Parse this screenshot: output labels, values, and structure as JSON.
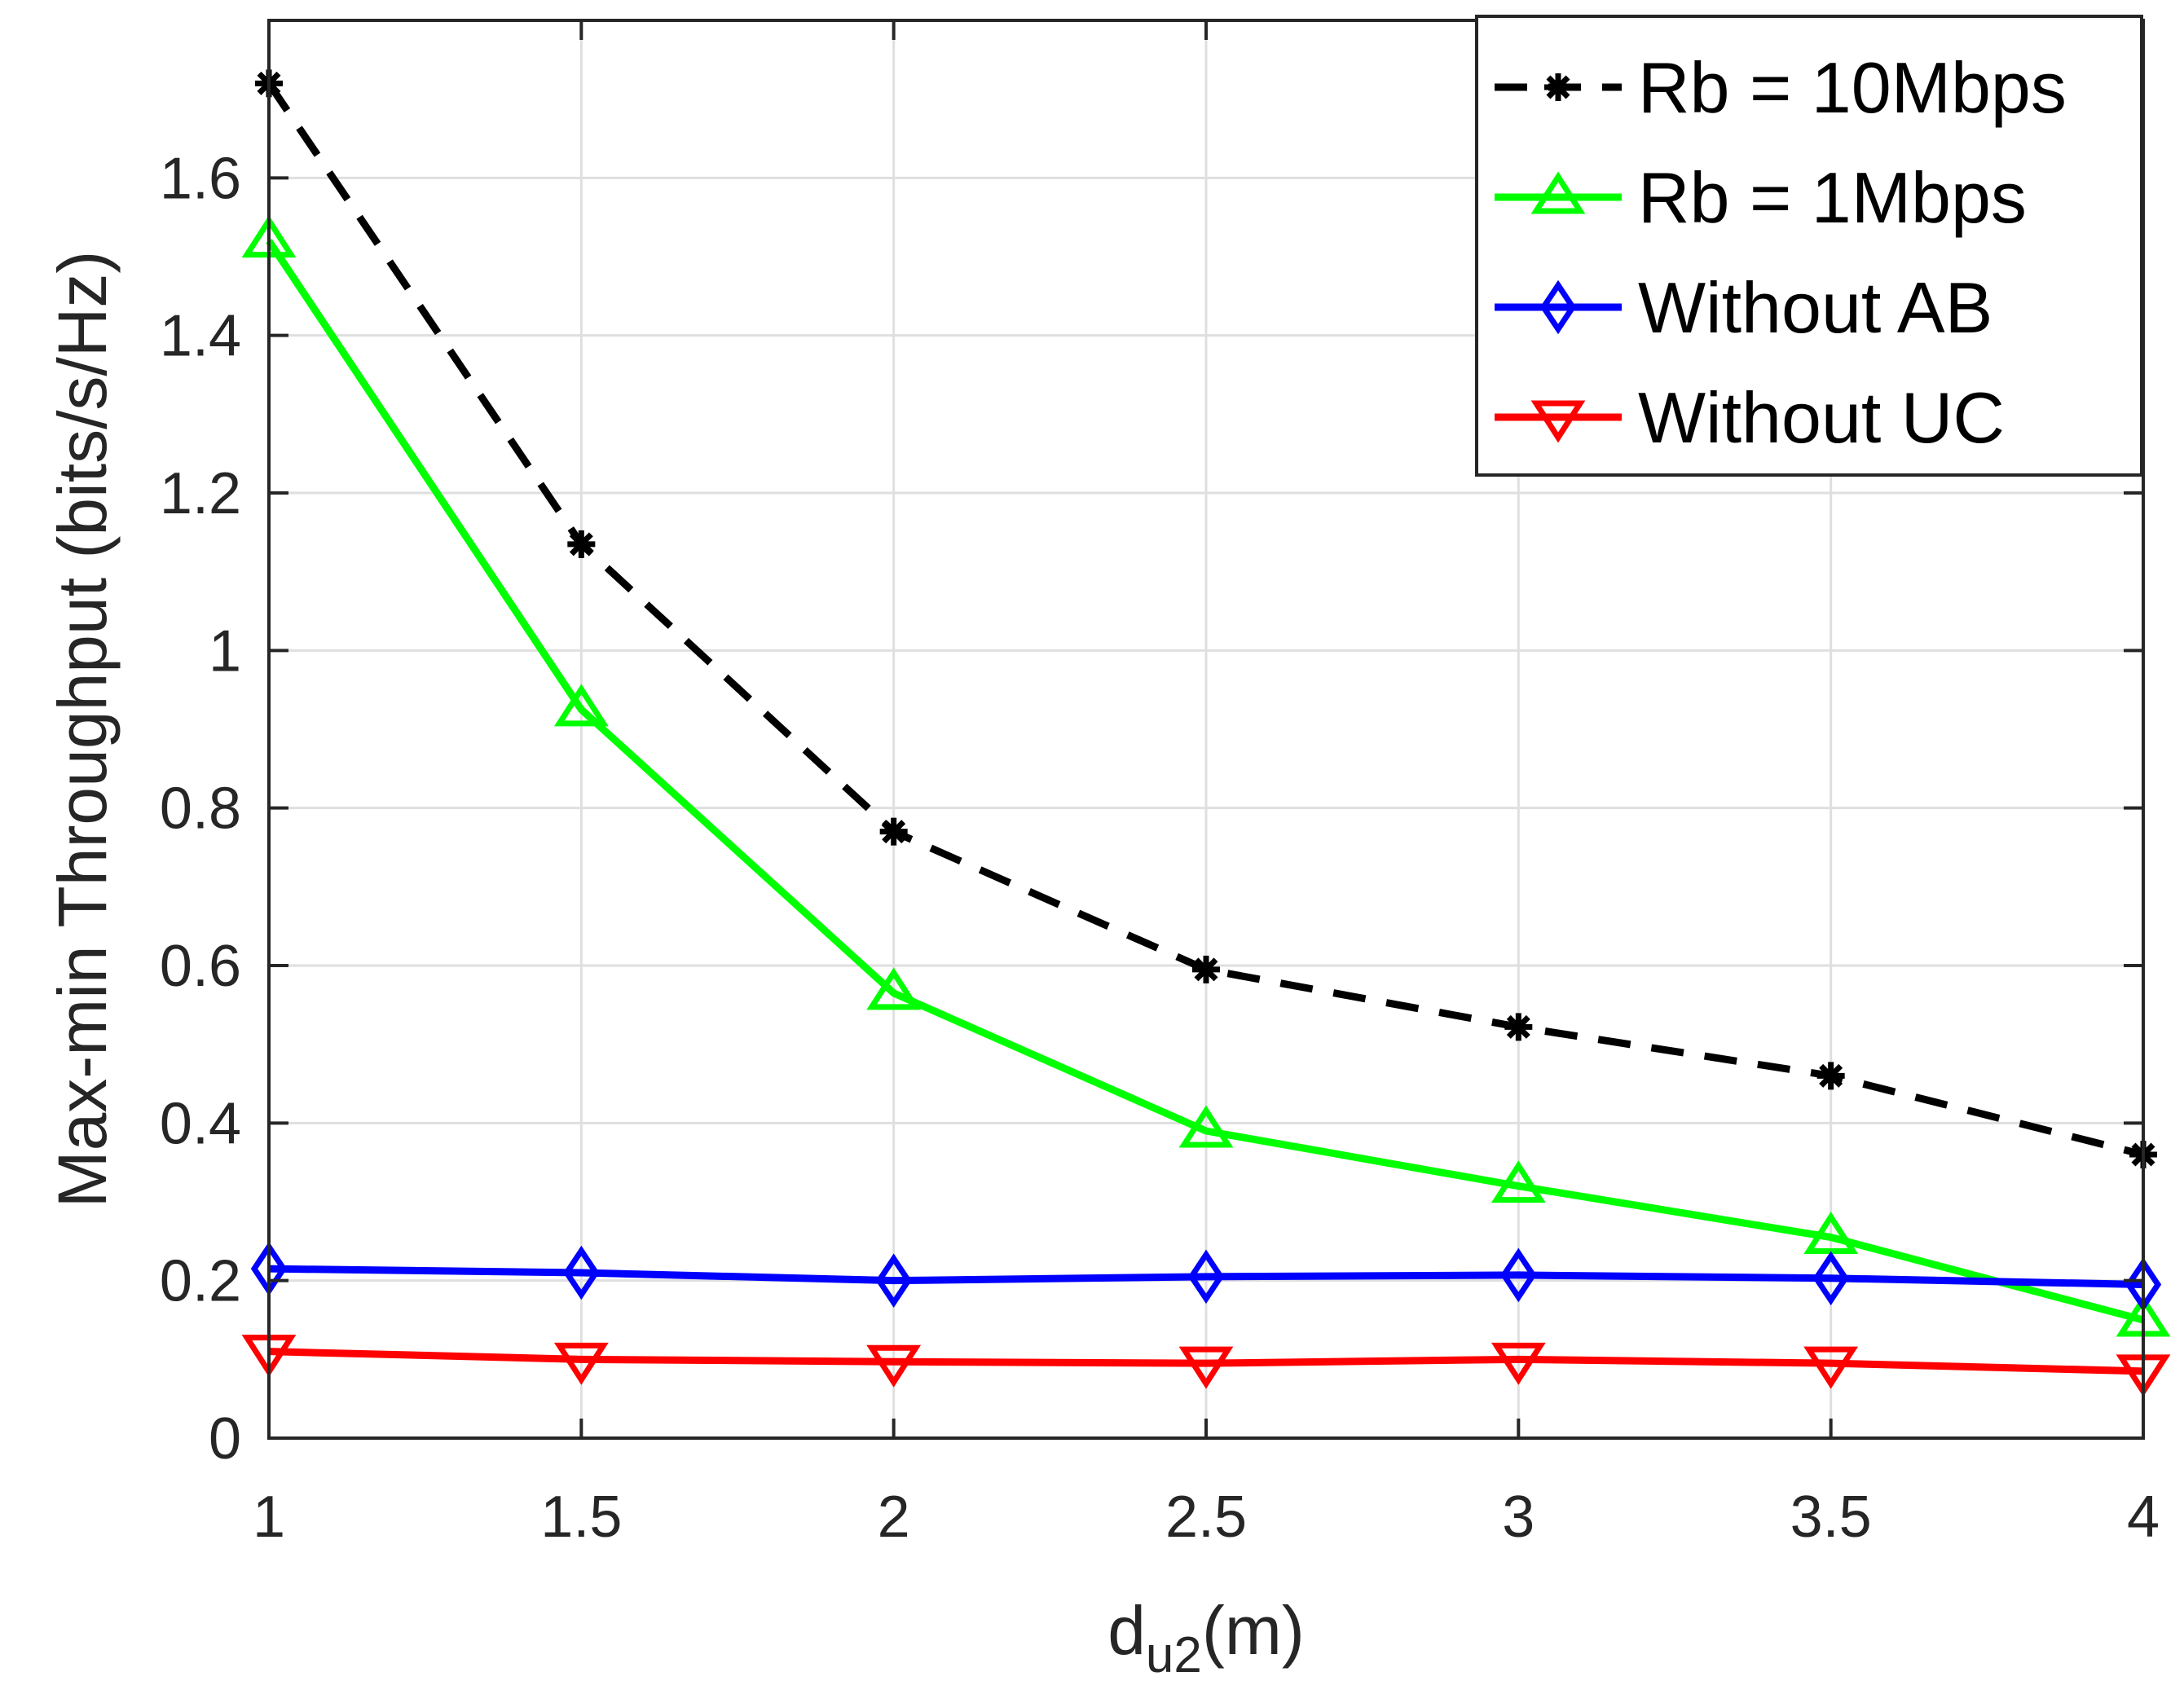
{
  "chart_data": {
    "type": "line",
    "title": "",
    "xlabel_main": "d",
    "xlabel_sub": "u2",
    "xlabel_suffix": "(m)",
    "ylabel": "Max-min Throughput (bits/s/Hz)",
    "xlim": [
      1,
      4
    ],
    "ylim": [
      0,
      1.8
    ],
    "xticks": [
      1,
      1.5,
      2,
      2.5,
      3,
      3.5,
      4
    ],
    "xtick_labels": [
      "1",
      "1.5",
      "2",
      "2.5",
      "3",
      "3.5",
      "4"
    ],
    "yticks": [
      0,
      0.2,
      0.4,
      0.6,
      0.8,
      1,
      1.2,
      1.4,
      1.6
    ],
    "ytick_labels": [
      "0",
      "0.2",
      "0.4",
      "0.6",
      "0.8",
      "1",
      "1.2",
      "1.4",
      "1.6"
    ],
    "grid": true,
    "legend_position": "top-right",
    "x": [
      1,
      1.5,
      2,
      2.5,
      3,
      3.5,
      4
    ],
    "series": [
      {
        "name": "Rb = 10Mbps",
        "color": "#000000",
        "line": "dashed",
        "marker": "asterisk",
        "values": [
          1.72,
          1.135,
          0.77,
          0.595,
          0.522,
          0.46,
          0.36
        ]
      },
      {
        "name": "Rb = 1Mbps",
        "color": "#00ff00",
        "line": "solid",
        "marker": "triangle-up",
        "values": [
          1.52,
          0.925,
          0.565,
          0.39,
          0.32,
          0.255,
          0.15
        ]
      },
      {
        "name": "Without AB",
        "color": "#0000ff",
        "line": "solid",
        "marker": "diamond",
        "values": [
          0.215,
          0.21,
          0.2,
          0.205,
          0.207,
          0.203,
          0.195
        ]
      },
      {
        "name": "Without UC",
        "color": "#ff0000",
        "line": "solid",
        "marker": "triangle-down",
        "values": [
          0.11,
          0.1,
          0.097,
          0.095,
          0.1,
          0.095,
          0.085
        ]
      }
    ]
  }
}
